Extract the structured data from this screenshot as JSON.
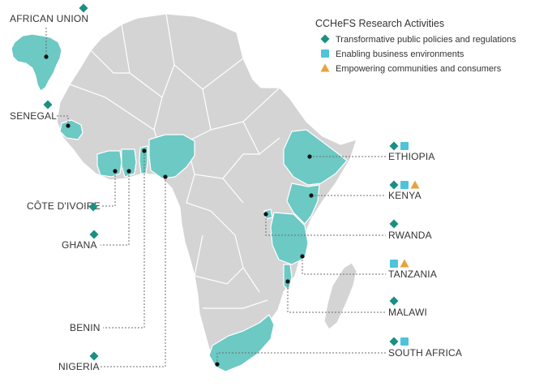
{
  "legend": {
    "title": "CCHeFS Research Activities",
    "items": [
      {
        "key": "policies",
        "shape": "diamond",
        "color": "#1a8f83",
        "label": "Transformative public policies and regulations"
      },
      {
        "key": "business",
        "shape": "square",
        "color": "#4fc3d9",
        "label": "Enabling business environments"
      },
      {
        "key": "communities",
        "shape": "triangle",
        "color": "#e8a33c",
        "label": "Empowering communities and consumers"
      }
    ]
  },
  "colors": {
    "land": "#d4d4d4",
    "highlight": "#6cc9c4",
    "border": "#ffffff"
  },
  "countries": [
    {
      "id": "african-union",
      "label": "AFRICAN UNION",
      "activities": [
        "policies"
      ]
    },
    {
      "id": "senegal",
      "label": "SENEGAL",
      "activities": [
        "policies"
      ]
    },
    {
      "id": "cote-divoire",
      "label": "CÔTE D'IVOIRE",
      "activities": [
        "policies"
      ]
    },
    {
      "id": "ghana",
      "label": "GHANA",
      "activities": [
        "policies"
      ]
    },
    {
      "id": "benin",
      "label": "BENIN",
      "activities": []
    },
    {
      "id": "nigeria",
      "label": "NIGERIA",
      "activities": [
        "policies"
      ]
    },
    {
      "id": "ethiopia",
      "label": "ETHIOPIA",
      "activities": [
        "policies",
        "business"
      ]
    },
    {
      "id": "kenya",
      "label": "KENYA",
      "activities": [
        "policies",
        "business",
        "communities"
      ]
    },
    {
      "id": "rwanda",
      "label": "RWANDA",
      "activities": [
        "policies"
      ]
    },
    {
      "id": "tanzania",
      "label": "TANZANIA",
      "activities": [
        "business",
        "communities"
      ]
    },
    {
      "id": "malawi",
      "label": "MALAWI",
      "activities": [
        "policies"
      ]
    },
    {
      "id": "south-africa",
      "label": "SOUTH AFRICA",
      "activities": [
        "policies",
        "business"
      ]
    }
  ]
}
